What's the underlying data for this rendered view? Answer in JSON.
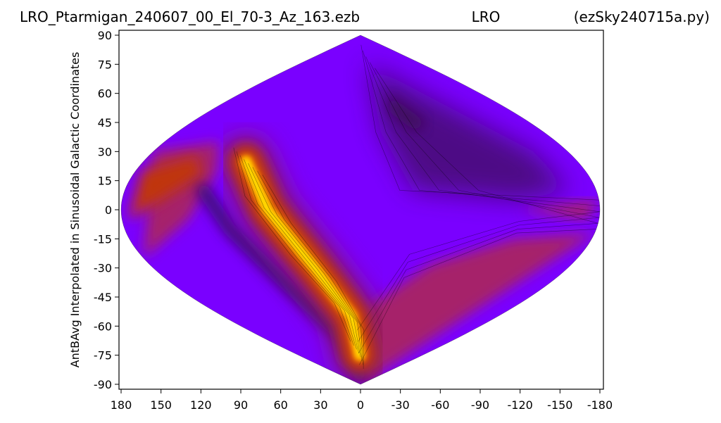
{
  "header": {
    "left": "LRO_Ptarmigan_240607_00_El_70-3_Az_163.ezb",
    "center": "LRO",
    "right": "(ezSky240715a.py)"
  },
  "chart_data": {
    "type": "heatmap",
    "projection": "sinusoidal",
    "title": "LRO_Ptarmigan_240607_00_El_70-3_Az_163.ezb",
    "xlabel": "",
    "ylabel": "AntBAvg Interpolated in Sinusoidal Galactic Coordinates",
    "xlim": [
      180,
      -180
    ],
    "ylim": [
      -90,
      90
    ],
    "x_ticks": [
      180,
      150,
      120,
      90,
      60,
      30,
      0,
      -30,
      -60,
      -90,
      -120,
      -150,
      -180
    ],
    "y_ticks": [
      90,
      75,
      60,
      45,
      30,
      15,
      0,
      -15,
      -30,
      -45,
      -60,
      -75,
      -90
    ],
    "x_tick_labels": [
      "180",
      "150",
      "120",
      "90",
      "60",
      "30",
      "0",
      "-30",
      "-60",
      "-90",
      "-120",
      "-150",
      "-180"
    ],
    "y_tick_labels": [
      "90",
      "75",
      "60",
      "45",
      "30",
      "15",
      "0",
      "-15",
      "-30",
      "-45",
      "-60",
      "-75",
      "-90"
    ],
    "colormap": "gnuplot",
    "colors": {
      "low": "#4a0a78",
      "mid_low": "#7a00ff",
      "mid": "#a6206a",
      "high": "#d64800",
      "peak": "#ffe600"
    },
    "grid": false,
    "legend": "none",
    "features": [
      {
        "name": "galactic-plane-ridge",
        "description": "bright yellow band",
        "points": [
          [
            95,
            25
          ],
          [
            70,
            0
          ],
          [
            40,
            -30
          ],
          [
            12,
            -55
          ],
          [
            2,
            -75
          ]
        ],
        "level": 1.0
      },
      {
        "name": "left-edge-lobe",
        "points": [
          [
            165,
            5
          ]
        ],
        "level": 0.55
      },
      {
        "name": "southern-right-region",
        "points": [
          [
            -90,
            -45
          ]
        ],
        "level": 0.45
      },
      {
        "name": "northern-right-dark-region",
        "points": [
          [
            -60,
            40
          ]
        ],
        "level": 0.0
      }
    ]
  }
}
